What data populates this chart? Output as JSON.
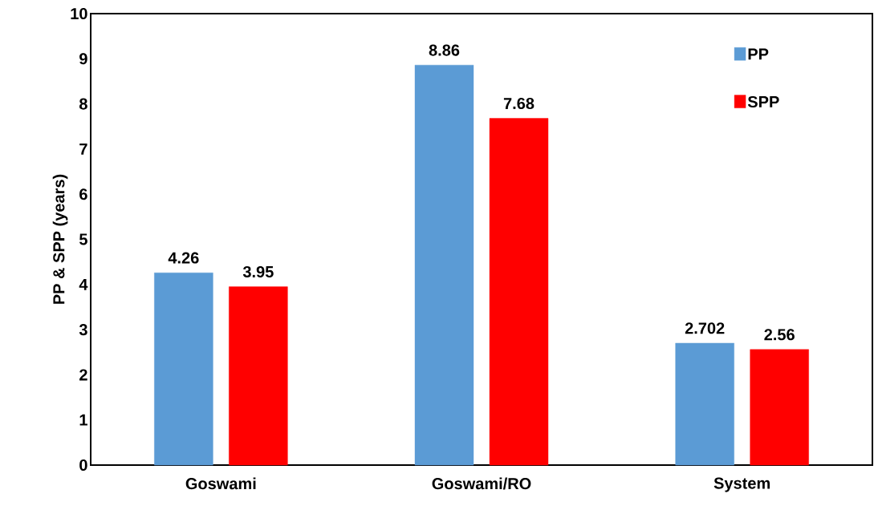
{
  "chart_data": {
    "type": "bar",
    "ylabel": "PP & SPP (years)",
    "categories": [
      "Goswami",
      "Goswami/RO",
      "System"
    ],
    "series": [
      {
        "name": "PP",
        "color": "#5b9bd5",
        "values": [
          4.26,
          8.86,
          2.702
        ]
      },
      {
        "name": "SPP",
        "color": "#ff0000",
        "values": [
          3.95,
          7.68,
          2.56
        ]
      }
    ],
    "ylim": [
      0,
      10
    ],
    "yticks": [
      0,
      1,
      2,
      3,
      4,
      5,
      6,
      7,
      8,
      9,
      10
    ],
    "data_labels": true,
    "legend": "top right",
    "grid": false
  }
}
